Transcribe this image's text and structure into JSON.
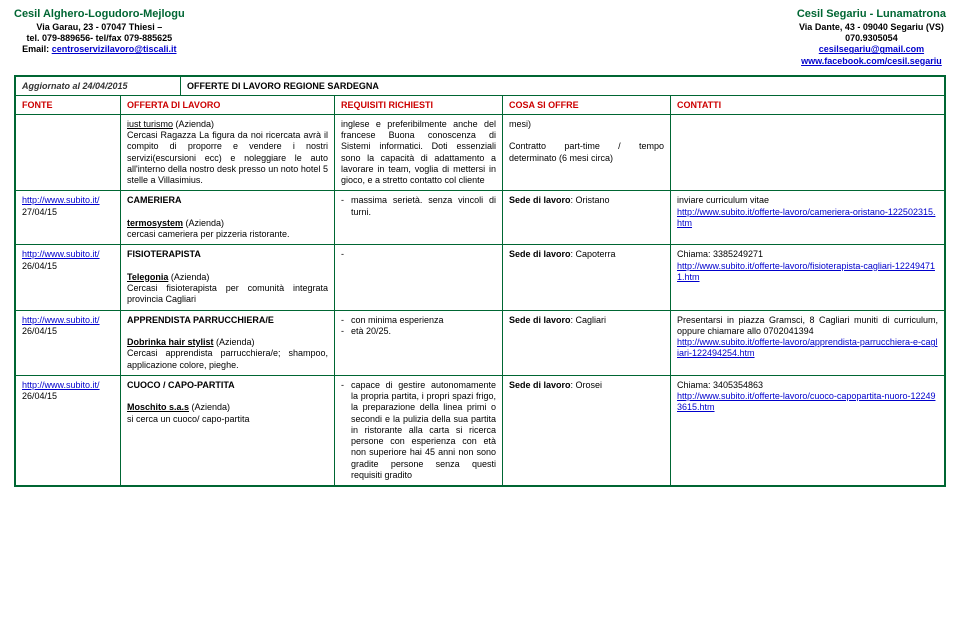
{
  "header": {
    "left": {
      "title": "Cesil Alghero-Logudoro-Mejlogu",
      "line1": "Via Garau, 23 - 07047 Thiesi –",
      "line2": "tel. 079-889656- tel/fax 079-885625",
      "email_prefix": "Email: ",
      "email": "centroservizilavoro@tiscali.it"
    },
    "right": {
      "title": "Cesil Segariu - Lunamatrona",
      "line1": "Via Dante, 43 - 09040 Segariu (VS)",
      "line2": "070.9305054",
      "email": "cesilsegariu@gmail.com",
      "fb": "www.facebook.com/cesil.segariu"
    }
  },
  "update_row": {
    "left": "Aggiornato al 24/04/2015",
    "right": "OFFERTE DI LAVORO REGIONE SARDEGNA"
  },
  "columns": {
    "fonte": "FONTE",
    "offerta": "OFFERTA DI LAVORO",
    "requisiti": "REQUISITI RICHIESTI",
    "cosa": "COSA SI OFFRE",
    "contatti": "CONTATTI"
  },
  "rows": [
    {
      "fonte": {},
      "offerta": {
        "company": "iust turismo",
        "company_suffix": " (Azienda)",
        "body": "Cercasi Ragazza La figura da noi ricercata avrà il compito di proporre e vendere i nostri servizi(escursioni ecc) e noleggiare le auto all'interno della nostro desk presso un noto hotel 5 stelle a Villasimius."
      },
      "requisiti": "inglese e preferibilmente anche del francese Buona conoscenza di Sistemi informatici. Doti essenziali sono la capacità di adattamento a lavorare in team, voglia di mettersi in gioco, e a stretto contatto col cliente",
      "cosa": {
        "line1": "mesi)",
        "line2": "Contratto part-time / tempo determinato (6 mesi circa)"
      },
      "contatti": ""
    },
    {
      "fonte": {
        "url": "http://www.subito.it/",
        "date": "27/04/15"
      },
      "offerta": {
        "title": "CAMERIERA",
        "company": "termosystem",
        "company_suffix": " (Azienda)",
        "body": "cercasi cameriera per pizzeria ristorante."
      },
      "requisiti_items": [
        "massima serietà. senza vincoli di turni."
      ],
      "cosa_line": "Sede di lavoro",
      "cosa_val": ": Oristano",
      "contatti": {
        "line1": "inviare curriculum vitae",
        "link": "http://www.subito.it/offerte-lavoro/cameriera-oristano-122502315.htm"
      }
    },
    {
      "fonte": {
        "url": "http://www.subito.it/",
        "date": "26/04/15"
      },
      "offerta": {
        "title": "FISIOTERAPISTA",
        "company": "Telegonia",
        "company_suffix": " (Azienda)",
        "body": "Cercasi fisioterapista per comunità integrata provincia Cagliari"
      },
      "requisiti_items": [
        ""
      ],
      "cosa_line": "Sede di lavoro",
      "cosa_val": ": Capoterra",
      "contatti": {
        "line1": "Chiama: 3385249271",
        "link": "http://www.subito.it/offerte-lavoro/fisioterapista-cagliari-122494711.htm"
      }
    },
    {
      "fonte": {
        "url": "http://www.subito.it/",
        "date": "26/04/15"
      },
      "offerta": {
        "title": "APPRENDISTA PARRUCCHIERA/E",
        "company": "Dobrinka hair stylist",
        "company_suffix": " (Azienda)",
        "body": "Cercasi apprendista parrucchiera/e; shampoo, applicazione colore, pieghe."
      },
      "requisiti_items": [
        "con minima esperienza",
        "età 20/25."
      ],
      "cosa_line": "Sede di lavoro",
      "cosa_val": ": Cagliari",
      "contatti": {
        "line1": "Presentarsi in piazza Gramsci, 8 Cagliari muniti di curriculum, oppure chiamare allo 0702041394",
        "link": "http://www.subito.it/offerte-lavoro/apprendista-parrucchiera-e-cagliari-122494254.htm"
      }
    },
    {
      "fonte": {
        "url": "http://www.subito.it/",
        "date": "26/04/15"
      },
      "offerta": {
        "title": "CUOCO / CAPO-PARTITA",
        "company": "Moschito s.a.s",
        "company_suffix": " (Azienda)",
        "body": "si cerca un cuoco/ capo-partita"
      },
      "requisiti_items": [
        "capace di gestire autonomamente la propria partita, i propri spazi frigo, la preparazione della linea primi o secondi e la pulizia della sua partita in ristorante alla carta si ricerca persone con esperienza con età non superiore hai 45 anni non sono gradite persone senza questi requisiti gradito"
      ],
      "cosa_line": "Sede di lavoro",
      "cosa_val": ": Orosei",
      "contatti": {
        "line1": "Chiama: 3405354863",
        "link": "http://www.subito.it/offerte-lavoro/cuoco-capopartita-nuoro-122493615.htm"
      }
    }
  ]
}
